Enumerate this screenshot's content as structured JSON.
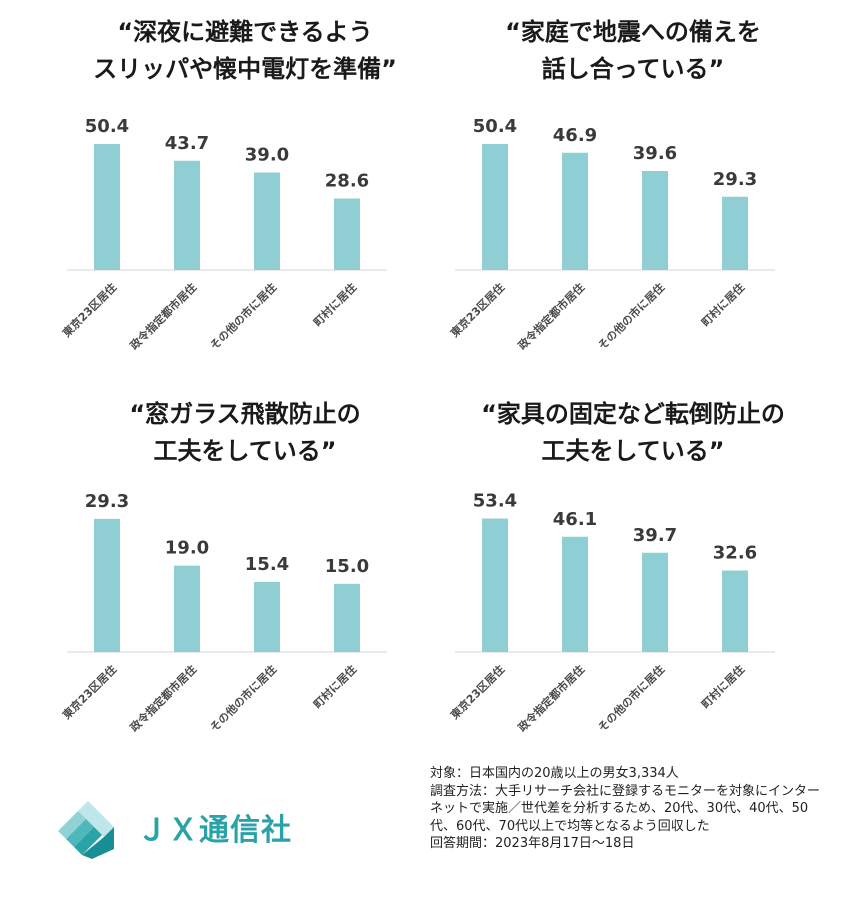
{
  "chart_data": [
    {
      "type": "bar",
      "title_lines": [
        "“深夜に避難できるよう",
        "スリッパや懐中電灯を準備”"
      ],
      "categories": [
        "東京23区居住",
        "政令指定都市居住",
        "その他の市に居住",
        "町村に居住"
      ],
      "values": [
        50.4,
        43.7,
        39.0,
        28.6
      ],
      "value_labels": [
        "50.4",
        "43.7",
        "39.0",
        "28.6"
      ],
      "ylim": [
        0,
        60
      ],
      "grid": false,
      "bar_color": "#8fcfd3"
    },
    {
      "type": "bar",
      "title_lines": [
        "“家庭で地震への備えを",
        "話し合っている”"
      ],
      "categories": [
        "東京23区居住",
        "政令指定都市居住",
        "その他の市に居住",
        "町村に居住"
      ],
      "values": [
        50.4,
        46.9,
        39.6,
        29.3
      ],
      "value_labels": [
        "50.4",
        "46.9",
        "39.6",
        "29.3"
      ],
      "ylim": [
        0,
        60
      ],
      "grid": false,
      "bar_color": "#8fcfd3"
    },
    {
      "type": "bar",
      "title_lines": [
        "“窓ガラス飛散防止の",
        "工夫をしている”"
      ],
      "categories": [
        "東京23区居住",
        "政令指定都市居住",
        "その他の市に居住",
        "町村に居住"
      ],
      "values": [
        29.3,
        19.0,
        15.4,
        15.0
      ],
      "value_labels": [
        "29.3",
        "19.0",
        "15.4",
        "15.0"
      ],
      "ylim": [
        0,
        33
      ],
      "grid": false,
      "bar_color": "#8fcfd3"
    },
    {
      "type": "bar",
      "title_lines": [
        "“家具の固定など転倒防止の",
        "工夫をしている”"
      ],
      "categories": [
        "東京23区居住",
        "政令指定都市居住",
        "その他の市に居住",
        "町村に居住"
      ],
      "values": [
        53.4,
        46.1,
        39.7,
        32.6
      ],
      "value_labels": [
        "53.4",
        "46.1",
        "39.7",
        "32.6"
      ],
      "ylim": [
        0,
        60
      ],
      "grid": false,
      "bar_color": "#8fcfd3"
    }
  ],
  "footnote": {
    "lines": [
      "対象：日本国内の20歳以上の男女3,334人",
      "調査方法：大手リサーチ会社に登録するモニターを対象にインターネットで実施／世代差を分析するため、20代、30代、40代、50代、60代、70代以上で均等となるよう回収した",
      "回答期間：2023年8月17日～18日"
    ]
  },
  "logo": {
    "text": "ＪＸ通信社",
    "icon": "jx-diamond-logo-icon",
    "color": "#2aa3a8"
  }
}
